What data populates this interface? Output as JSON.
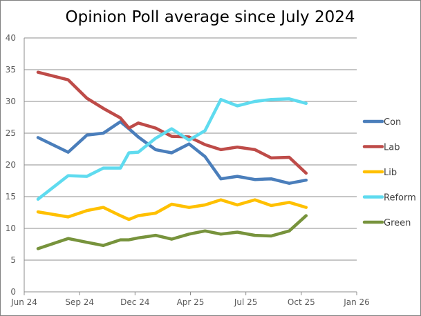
{
  "chart_data": {
    "type": "line",
    "title": "Opinion Poll average since July 2024",
    "xlabel": "",
    "ylabel": "",
    "ylim": [
      0,
      40
    ],
    "yticks": [
      "0",
      "5",
      "10",
      "15",
      "20",
      "25",
      "30",
      "35",
      "40"
    ],
    "xticks": [
      "Jun 24",
      "Sep 24",
      "Dec 24",
      "Apr 25",
      "Jul 25",
      "Oct 25",
      "Jan 26"
    ],
    "grid": "horizontal",
    "legend": "right",
    "x": [
      "2024-06-24",
      "2024-08-13",
      "2024-09-13",
      "2024-10-10",
      "2024-11-07",
      "2024-11-21",
      "2024-12-08",
      "2025-01-15",
      "2025-02-19",
      "2025-03-29",
      "2025-04-25",
      "2025-05-21",
      "2025-06-17",
      "2025-07-16",
      "2025-08-12",
      "2025-09-11",
      "2025-10-09"
    ],
    "series": [
      {
        "name": "Con",
        "color": "#4A7EBB",
        "values": [
          24.3,
          22.0,
          24.7,
          25.0,
          26.8,
          25.7,
          24.4,
          22.4,
          21.9,
          23.3,
          21.3,
          17.8,
          18.2,
          17.7,
          17.8,
          17.1,
          17.6
        ]
      },
      {
        "name": "Lab",
        "color": "#BE4B48",
        "values": [
          34.6,
          33.4,
          30.5,
          28.9,
          27.4,
          25.8,
          26.6,
          25.8,
          24.5,
          24.4,
          23.2,
          22.4,
          22.8,
          22.4,
          21.1,
          21.2,
          18.7
        ]
      },
      {
        "name": "Lib",
        "color": "#FFC000",
        "values": [
          12.6,
          11.8,
          12.8,
          13.3,
          12.0,
          11.4,
          12.0,
          12.4,
          13.8,
          13.3,
          13.7,
          14.5,
          13.7,
          14.5,
          13.6,
          14.1,
          13.3
        ]
      },
      {
        "name": "Reform",
        "color": "#5FDBEF",
        "values": [
          14.6,
          18.3,
          18.2,
          19.5,
          19.5,
          21.9,
          22.0,
          24.2,
          25.7,
          23.9,
          25.4,
          30.3,
          29.3,
          30.0,
          30.3,
          30.4,
          29.7
        ]
      },
      {
        "name": "Green",
        "color": "#77933C",
        "values": [
          6.8,
          8.4,
          7.8,
          7.3,
          8.2,
          8.2,
          8.5,
          8.9,
          8.3,
          9.1,
          9.6,
          9.1,
          9.4,
          8.9,
          8.8,
          9.6,
          12.0
        ]
      }
    ]
  }
}
